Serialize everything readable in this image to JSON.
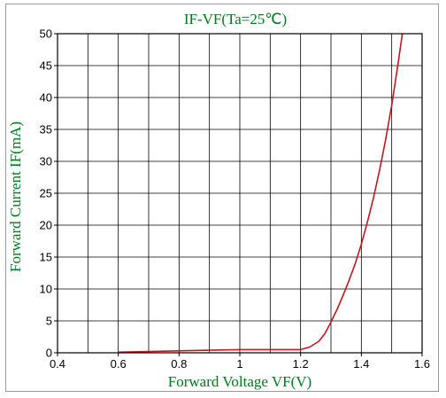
{
  "chart_data": {
    "type": "line",
    "title": "IF-VF(Ta=25℃)",
    "xlabel": "Forward Voltage VF(V)",
    "ylabel": "Forward Current IF(mA)",
    "xlim": [
      0.4,
      1.6
    ],
    "ylim": [
      0,
      50
    ],
    "x_ticks": [
      "0.4",
      "0.6",
      "0.8",
      "1",
      "1.2",
      "1.4",
      "1.6"
    ],
    "x_tick_values": [
      0.4,
      0.6,
      0.8,
      1.0,
      1.2,
      1.4,
      1.6
    ],
    "y_ticks": [
      "0",
      "5",
      "10",
      "15",
      "20",
      "25",
      "30",
      "35",
      "40",
      "45",
      "50"
    ],
    "y_tick_values": [
      0,
      5,
      10,
      15,
      20,
      25,
      30,
      35,
      40,
      45,
      50
    ],
    "grid": true,
    "grid_x_values": [
      0.5,
      0.6,
      0.7,
      0.8,
      0.9,
      1.0,
      1.1,
      1.2,
      1.3,
      1.4,
      1.5
    ],
    "series": [
      {
        "color": "#c0181c",
        "x": [
          0.6,
          0.7,
          0.8,
          0.9,
          1.0,
          1.1,
          1.2,
          1.23,
          1.26,
          1.28,
          1.3,
          1.32,
          1.34,
          1.36,
          1.38,
          1.4,
          1.42,
          1.44,
          1.46,
          1.48,
          1.5,
          1.52,
          1.535
        ],
        "y": [
          0.1,
          0.2,
          0.3,
          0.4,
          0.5,
          0.5,
          0.5,
          0.9,
          1.8,
          3.0,
          4.8,
          6.8,
          9.0,
          11.4,
          14.0,
          17.0,
          20.5,
          24.3,
          28.6,
          33.4,
          38.8,
          45.0,
          50.0
        ]
      }
    ],
    "colors": {
      "title": "#007a1a",
      "axis_title": "#007a1a",
      "grid": "#000000",
      "curve": "#c0181c"
    }
  }
}
